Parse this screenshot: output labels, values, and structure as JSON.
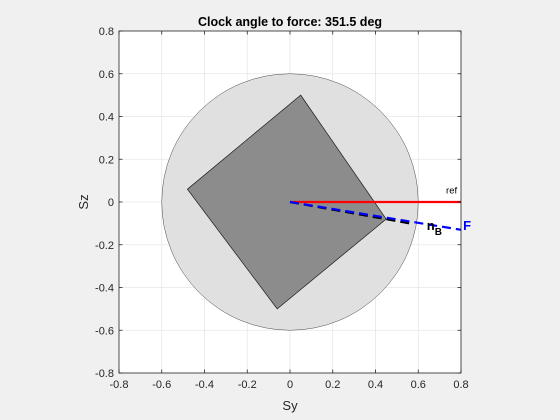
{
  "chart_data": {
    "type": "scatter",
    "title": "Clock angle to force: 351.5 deg",
    "xlabel": "Sy",
    "ylabel": "Sz",
    "xlim": [
      -0.8,
      0.8
    ],
    "ylim": [
      -0.8,
      0.8
    ],
    "xticks": [
      "-0.8",
      "-0.6",
      "-0.4",
      "-0.2",
      "0",
      "0.2",
      "0.4",
      "0.6",
      "0.8"
    ],
    "yticks": [
      "-0.8",
      "-0.6",
      "-0.4",
      "-0.2",
      "0",
      "0.2",
      "0.4",
      "0.6",
      "0.8"
    ],
    "grid": true,
    "clock_angle_deg": 351.5,
    "disk": {
      "center": [
        0,
        0
      ],
      "radius": 0.6,
      "color": "#e0e0e0"
    },
    "panel": {
      "vertices": [
        [
          0.05,
          0.5
        ],
        [
          0.45,
          -0.08
        ],
        [
          -0.06,
          -0.5
        ],
        [
          -0.48,
          0.06
        ]
      ],
      "color": "#8c8c8c"
    },
    "series": [
      {
        "name": "ref",
        "points": [
          [
            0,
            0
          ],
          [
            0.8,
            0
          ]
        ],
        "color": "#ff0000",
        "style": "solid"
      },
      {
        "name": "n_B",
        "points": [
          [
            0,
            0
          ],
          [
            0.56,
            -0.1
          ]
        ],
        "color": "#000000",
        "style": "dashed"
      },
      {
        "name": "F",
        "points": [
          [
            0,
            0
          ],
          [
            0.8,
            -0.13
          ]
        ],
        "color": "#0000ff",
        "style": "dashed"
      }
    ],
    "annotations": [
      {
        "text": "ref",
        "at": [
          0.73,
          0.04
        ],
        "color": "#000000"
      },
      {
        "text": "n",
        "subscript": "B",
        "at": [
          0.64,
          -0.13
        ],
        "color": "#000000"
      },
      {
        "text": "F",
        "at": [
          0.81,
          -0.13
        ],
        "color": "#0000ff"
      }
    ]
  }
}
